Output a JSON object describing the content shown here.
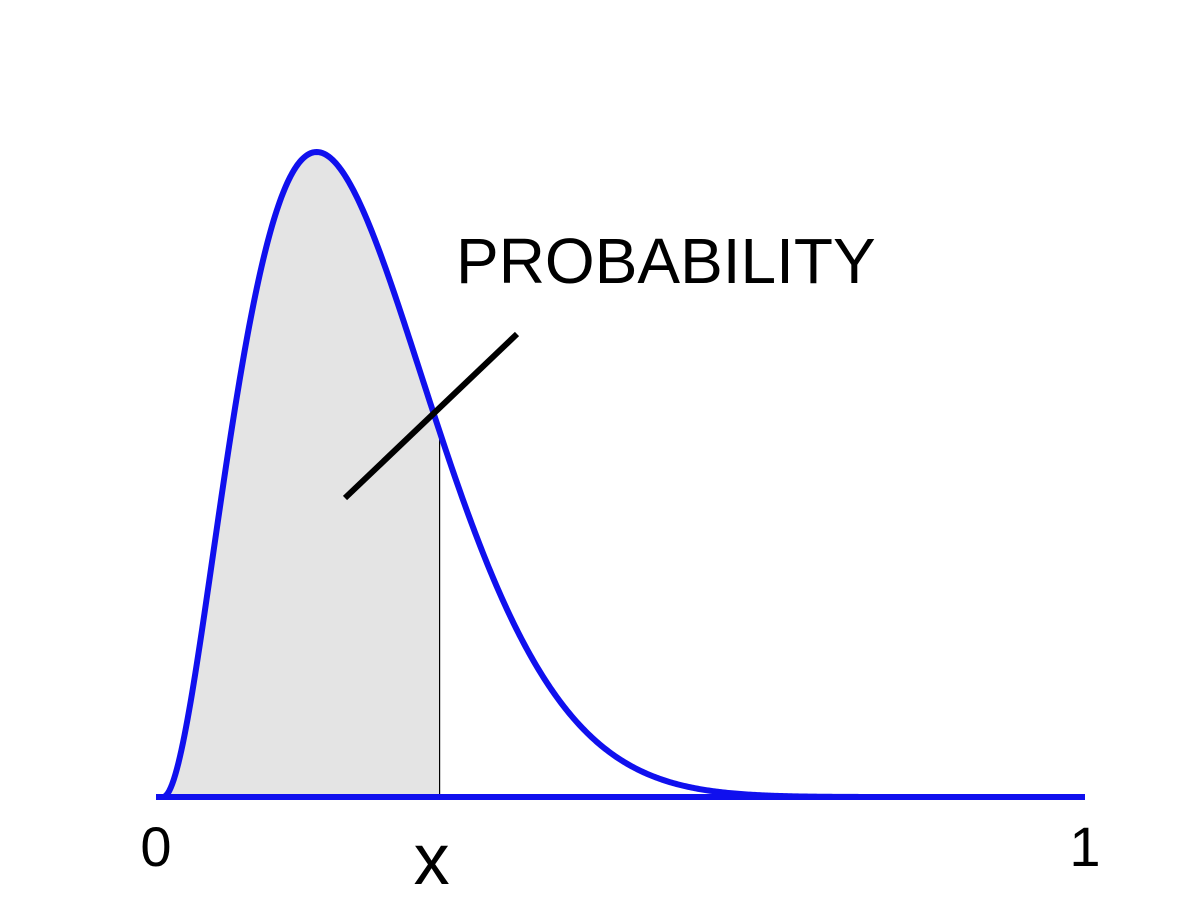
{
  "chart_data": {
    "type": "area",
    "title": "",
    "xlabel": "",
    "ylabel": "",
    "xlim": [
      0,
      1
    ],
    "ylim": [
      0,
      1.04
    ],
    "grid": false,
    "legend": "none",
    "distribution": {
      "family": "beta",
      "alpha": 3,
      "beta": 11
    },
    "series": [
      {
        "x": [
          0,
          0.02,
          0.05,
          0.08,
          0.1,
          0.12,
          0.154,
          0.18,
          0.2,
          0.24,
          0.28,
          0.32,
          0.36,
          0.4,
          0.45,
          0.5,
          0.55,
          0.6,
          0.7,
          0.8,
          0.9,
          1
        ],
        "values": [
          0,
          0.09,
          0.41,
          0.75,
          0.9,
          0.99,
          1.0,
          0.94,
          0.84,
          0.62,
          0.41,
          0.24,
          0.13,
          0.064,
          0.022,
          0.007,
          0.002,
          0.0004,
          0,
          0,
          0,
          0
        ]
      }
    ],
    "shaded_region": {
      "from": 0,
      "to": 0.3
    },
    "x_ticks": [
      "0",
      "1"
    ],
    "x_marker": {
      "value": 0.3,
      "label": "x"
    },
    "annotations": [
      {
        "text": "PROBABILITY"
      }
    ],
    "colors": {
      "curve": "#1010ee",
      "fill": "#e4e4e4",
      "marker": "#000000",
      "pointer": "#000000"
    }
  }
}
